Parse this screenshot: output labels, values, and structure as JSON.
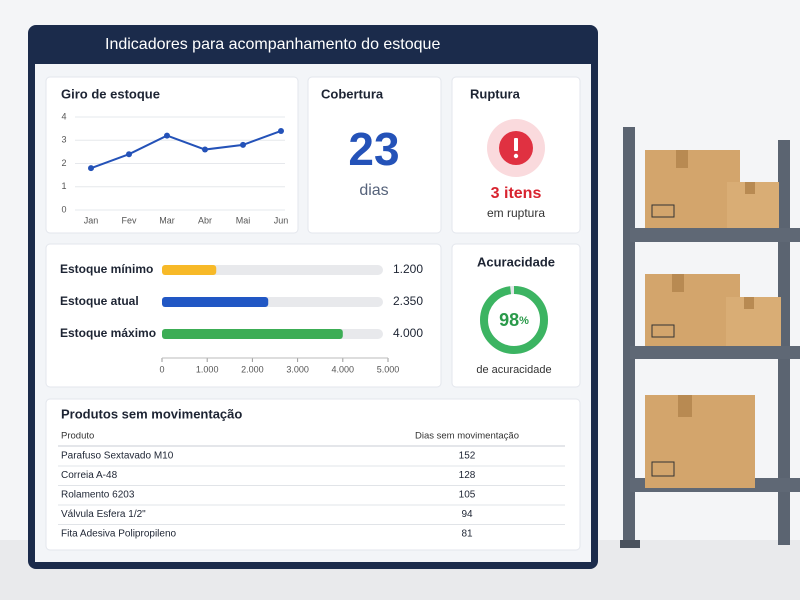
{
  "header": {
    "title": "Indicadores para acompanhamento do estoque"
  },
  "turnover": {
    "type": "line",
    "title": "Giro de estoque",
    "categories": [
      "Jan",
      "Fev",
      "Mar",
      "Abr",
      "Mai",
      "Jun"
    ],
    "values": [
      1.8,
      2.4,
      3.2,
      2.6,
      2.8,
      3.4
    ],
    "color": "#2452b8",
    "ylim": [
      0,
      4
    ],
    "yticks": [
      0,
      1,
      2,
      3,
      4
    ],
    "grid": true
  },
  "coverage": {
    "title": "Cobertura",
    "value": 23,
    "unit": "dias"
  },
  "stockout": {
    "title": "Ruptura",
    "value": "3 itens",
    "caption": "em ruptura"
  },
  "stock_levels": {
    "type": "bar",
    "categories": [
      "Estoque mínimo",
      "Estoque atual",
      "Estoque máximo"
    ],
    "values": [
      1200,
      2350,
      4000
    ],
    "value_labels": [
      "1.200",
      "2.350",
      "4.000"
    ],
    "colors": [
      "#f7b928",
      "#2157c4",
      "#3cad55"
    ],
    "xlim": [
      0,
      5000
    ],
    "xticks": [
      0,
      {
        "value": 1000,
        "label": "1.000"
      },
      {
        "value": 2000,
        "label": "2.000"
      },
      {
        "value": 3000,
        "label": "3.000"
      },
      {
        "value": 4000,
        "label": "4.000"
      },
      {
        "value": 5000,
        "label": "5.000"
      }
    ]
  },
  "accuracy": {
    "title": "Acuracidade",
    "value": 98,
    "unit": "%",
    "caption": "de acuracidade",
    "color": "#3cb462"
  },
  "table": {
    "title": "Produtos sem movimentação",
    "columns": [
      "Produto",
      "Dias sem movimentação"
    ],
    "rows": [
      [
        "Parafuso Sextavado M10",
        152
      ],
      [
        "Correia A-48",
        128
      ],
      [
        "Rolamento 6203",
        105
      ],
      [
        "Válvula Esfera 1/2\"",
        94
      ],
      [
        "Fita Adesiva Polipropileno",
        81
      ]
    ]
  }
}
